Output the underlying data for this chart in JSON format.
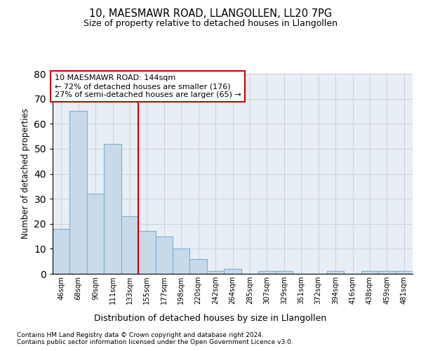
{
  "title": "10, MAESMAWR ROAD, LLANGOLLEN, LL20 7PG",
  "subtitle": "Size of property relative to detached houses in Llangollen",
  "xlabel": "Distribution of detached houses by size in Llangollen",
  "ylabel": "Number of detached properties",
  "categories": [
    "46sqm",
    "68sqm",
    "90sqm",
    "111sqm",
    "133sqm",
    "155sqm",
    "177sqm",
    "198sqm",
    "220sqm",
    "242sqm",
    "264sqm",
    "285sqm",
    "307sqm",
    "329sqm",
    "351sqm",
    "372sqm",
    "394sqm",
    "416sqm",
    "438sqm",
    "459sqm",
    "481sqm"
  ],
  "bar_values": [
    18,
    65,
    32,
    52,
    23,
    17,
    15,
    10,
    6,
    1,
    2,
    0,
    1,
    1,
    0,
    0,
    1,
    0,
    1,
    1,
    1
  ],
  "bar_color": "#c8daea",
  "bar_edge_color": "#7bafd4",
  "property_line_x": 4.5,
  "property_line_color": "#cc0000",
  "annotation_text": "10 MAESMAWR ROAD: 144sqm\n← 72% of detached houses are smaller (176)\n27% of semi-detached houses are larger (65) →",
  "annotation_box_edge_color": "#cc0000",
  "ylim": [
    0,
    80
  ],
  "yticks": [
    0,
    10,
    20,
    30,
    40,
    50,
    60,
    70,
    80
  ],
  "grid_color": "#cccccc",
  "plot_bg_color": "#e8eef5",
  "footer_line1": "Contains HM Land Registry data © Crown copyright and database right 2024.",
  "footer_line2": "Contains public sector information licensed under the Open Government Licence v3.0."
}
